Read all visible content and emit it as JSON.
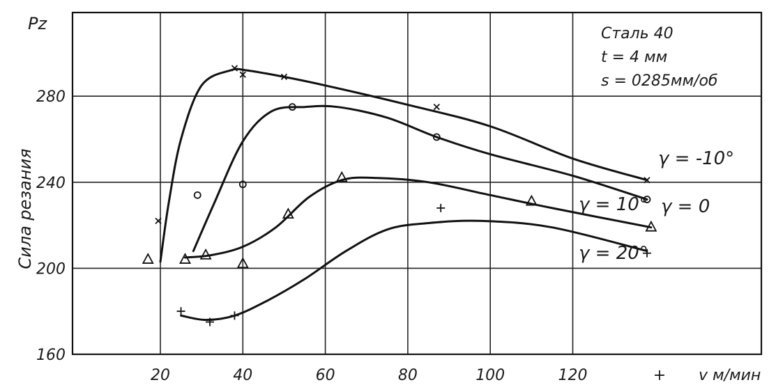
{
  "chart_data": {
    "type": "line",
    "ylabel": "Сила резания",
    "ytitle": "Pz",
    "xlabel": "v м/мин",
    "xlim": [
      -20,
      140
    ],
    "ylim": [
      160,
      300
    ],
    "x_ticks": [
      {
        "value": 20,
        "label": "20"
      },
      {
        "value": 40,
        "label": "40"
      },
      {
        "value": 60,
        "label": "60"
      },
      {
        "value": 80,
        "label": "80"
      },
      {
        "value": 100,
        "label": "100"
      },
      {
        "value": 120,
        "label": "120"
      }
    ],
    "y_ticks": [
      {
        "value": 160,
        "label": "160"
      },
      {
        "value": 200,
        "label": "200"
      },
      {
        "value": 240,
        "label": "240"
      },
      {
        "value": 280,
        "label": "280"
      }
    ],
    "grid": true,
    "annotation_lines": [
      "Сталь 40",
      "t = 4 мм",
      "s = 0285мм/об"
    ],
    "series": [
      {
        "name": "γ = -10°",
        "marker": "x",
        "points": [
          [
            19.5,
            222
          ],
          [
            38,
            293
          ],
          [
            40,
            290
          ],
          [
            50,
            289
          ],
          [
            87,
            275
          ],
          [
            138,
            241
          ]
        ],
        "curve": [
          [
            20,
            203
          ],
          [
            22,
            230
          ],
          [
            25,
            260
          ],
          [
            30,
            285
          ],
          [
            37,
            292
          ],
          [
            41,
            292
          ],
          [
            50,
            289
          ],
          [
            60,
            285
          ],
          [
            80,
            276
          ],
          [
            100,
            266
          ],
          [
            120,
            251
          ],
          [
            138,
            241
          ]
        ]
      },
      {
        "name": "γ = 0",
        "marker": "o",
        "points": [
          [
            29,
            234
          ],
          [
            40,
            239
          ],
          [
            52,
            275
          ],
          [
            87,
            261
          ],
          [
            138,
            232
          ]
        ],
        "curve": [
          [
            28,
            208
          ],
          [
            33,
            230
          ],
          [
            40,
            259
          ],
          [
            47,
            273
          ],
          [
            55,
            275
          ],
          [
            63,
            275
          ],
          [
            75,
            270
          ],
          [
            87,
            261
          ],
          [
            100,
            253
          ],
          [
            120,
            243
          ],
          [
            138,
            232
          ]
        ]
      },
      {
        "name": "γ = 10°",
        "marker": "triangle",
        "points": [
          [
            17,
            204
          ],
          [
            26,
            204
          ],
          [
            31,
            206
          ],
          [
            40,
            202
          ],
          [
            51,
            225
          ],
          [
            64,
            242
          ],
          [
            110,
            231
          ],
          [
            139,
            219
          ]
        ],
        "curve": [
          [
            26,
            205
          ],
          [
            32,
            206
          ],
          [
            40,
            210
          ],
          [
            48,
            219
          ],
          [
            56,
            233
          ],
          [
            64,
            241
          ],
          [
            72,
            242
          ],
          [
            85,
            240
          ],
          [
            100,
            234
          ],
          [
            115,
            228
          ],
          [
            139,
            219
          ]
        ]
      },
      {
        "name": "γ = 20°",
        "marker": "plus",
        "points": [
          [
            25,
            180
          ],
          [
            32,
            175
          ],
          [
            38,
            178
          ],
          [
            88,
            228
          ],
          [
            138,
            207
          ]
        ],
        "curve": [
          [
            25,
            178
          ],
          [
            31,
            176
          ],
          [
            38,
            178
          ],
          [
            46,
            185
          ],
          [
            55,
            195
          ],
          [
            65,
            208
          ],
          [
            75,
            218
          ],
          [
            85,
            221
          ],
          [
            98,
            222
          ],
          [
            115,
            219
          ],
          [
            138,
            208
          ]
        ]
      }
    ]
  }
}
